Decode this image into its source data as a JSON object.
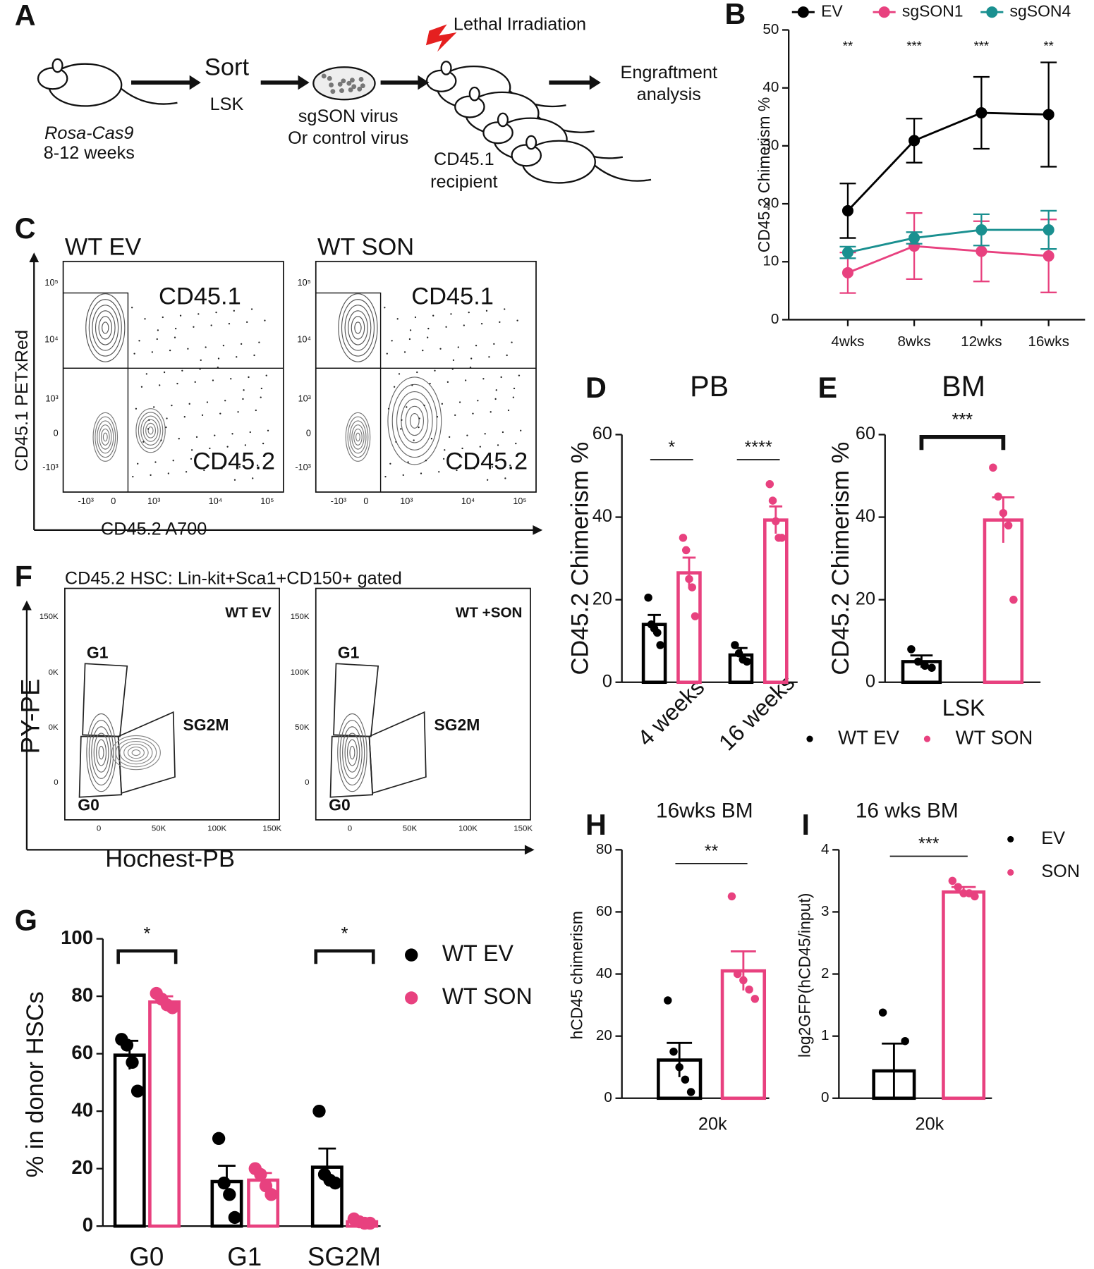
{
  "panel_labels": [
    "A",
    "B",
    "C",
    "D",
    "E",
    "F",
    "G",
    "H",
    "I"
  ],
  "panel_a": {
    "mouse_line": "Rosa-Cas9",
    "age": "8-12 weeks",
    "step1": "Sort",
    "step1_sub": "LSK",
    "virus_line1": "sgSON virus",
    "virus_line2": "Or control virus",
    "irradiation": "Lethal Irradiation",
    "recipient_line1": "CD45.1",
    "recipient_line2": "recipient",
    "analysis_line1": "Engraftment",
    "analysis_line2": "analysis"
  },
  "panel_c": {
    "y_label": "CD45.1 PETxRed",
    "x_label": "CD45.2 A700",
    "y_ticks": [
      "10⁵",
      "10⁴",
      "10³",
      "0",
      "-10³"
    ],
    "x_ticks": [
      "-10³",
      "0",
      "10³",
      "10⁴",
      "10⁵"
    ],
    "plots": [
      {
        "title": "WT EV",
        "upper": "CD45.1",
        "lower": "CD45.2"
      },
      {
        "title": "WT SON",
        "upper": "CD45.1",
        "lower": "CD45.2"
      }
    ]
  },
  "panel_f": {
    "title": "CD45.2 HSC: Lin-kit+Sca1+CD150+ gated",
    "y_label": "PY-PE",
    "x_label": "Hochest-PB",
    "x_ticks": [
      "0",
      "50K",
      "100K",
      "150K"
    ],
    "gates": [
      "G1",
      "SG2M",
      "G0"
    ],
    "plots": [
      {
        "label": "WT EV",
        "y_ticks": [
          "150K",
          "0K",
          "0K",
          "0"
        ]
      },
      {
        "label": "WT +SON",
        "y_ticks": [
          "150K",
          "100K",
          "50K",
          "0"
        ]
      }
    ]
  },
  "chart_data": [
    {
      "type": "line",
      "ylabel": "CD45.2 Chimerism %",
      "categories": [
        "4wks",
        "8wks",
        "12wks",
        "16wks"
      ],
      "ylim": [
        0,
        50
      ],
      "yticks": [
        0,
        10,
        20,
        30,
        40,
        50
      ],
      "significance": [
        "**",
        "***",
        "***",
        "**"
      ],
      "series": [
        {
          "name": "EV",
          "color": "#000000",
          "values": [
            18.8,
            30.9,
            35.7,
            35.4
          ],
          "errors": [
            4.7,
            3.8,
            6.2,
            9.0
          ]
        },
        {
          "name": "sgSON1",
          "color": "#e8417f",
          "values": [
            8.1,
            12.7,
            11.8,
            11.0
          ],
          "errors": [
            3.5,
            5.7,
            5.2,
            6.3
          ]
        },
        {
          "name": "sgSON4",
          "color": "#1a9090",
          "values": [
            11.6,
            14.1,
            15.5,
            15.5
          ],
          "errors": [
            1.0,
            1.0,
            2.7,
            3.3
          ]
        }
      ]
    },
    {
      "type": "bar",
      "title": "PB",
      "ylabel": "CD45.2 Chimerism %",
      "categories": [
        "4 weeks",
        "16 weeks"
      ],
      "ylim": [
        0,
        60
      ],
      "yticks": [
        0,
        20,
        40,
        60
      ],
      "significance": [
        "*",
        "****"
      ],
      "series": [
        {
          "name": "WT EV",
          "color": "#000000",
          "values": [
            14.0,
            6.6
          ],
          "errors": [
            2.3,
            1.7
          ],
          "points": [
            [
              20.5,
              14,
              13,
              12,
              9
            ],
            [
              9,
              7,
              5.5,
              5
            ]
          ]
        },
        {
          "name": "WT SON",
          "color": "#e8417f",
          "values": [
            26.5,
            39.3
          ],
          "errors": [
            3.7,
            3.3
          ],
          "points": [
            [
              35,
              32,
              25,
              23,
              16
            ],
            [
              48,
              44,
              39,
              35,
              35
            ]
          ]
        }
      ]
    },
    {
      "type": "bar",
      "title": "BM",
      "ylabel": "CD45.2 Chimerism %",
      "categories": [
        "LSK"
      ],
      "ylim": [
        0,
        60
      ],
      "yticks": [
        0,
        20,
        40,
        60
      ],
      "significance": [
        "***"
      ],
      "series": [
        {
          "name": "WT EV",
          "color": "#000000",
          "values": [
            5.0
          ],
          "errors": [
            1.5
          ],
          "points": [
            [
              8,
              5,
              4,
              3.5
            ]
          ]
        },
        {
          "name": "WT SON",
          "color": "#e8417f",
          "values": [
            39.3
          ],
          "errors": [
            5.5
          ],
          "points": [
            [
              52,
              45,
              41,
              38,
              20
            ]
          ]
        }
      ]
    },
    {
      "type": "bar",
      "ylabel": "% in donor HSCs",
      "categories": [
        "G0",
        "G1",
        "SG2M"
      ],
      "ylim": [
        0,
        100
      ],
      "yticks": [
        0,
        20,
        40,
        60,
        80,
        100
      ],
      "significance": [
        "*",
        null,
        "*"
      ],
      "series": [
        {
          "name": "WT EV",
          "color": "#000000",
          "values": [
            59.5,
            15.5,
            20.5
          ],
          "errors": [
            5.0,
            5.5,
            6.5
          ],
          "points": [
            [
              65,
              63,
              57,
              47
            ],
            [
              30.5,
              15,
              11,
              3
            ],
            [
              40,
              18,
              16,
              15
            ]
          ]
        },
        {
          "name": "WT SON",
          "color": "#e8417f",
          "values": [
            78.0,
            16.0,
            1.5
          ],
          "errors": [
            2.0,
            2.5,
            0.5
          ],
          "points": [
            [
              81,
              79,
              77,
              76
            ],
            [
              20,
              18,
              14,
              11
            ],
            [
              2.5,
              1.5,
              1,
              1
            ]
          ]
        }
      ]
    },
    {
      "type": "bar",
      "title": "16wks BM",
      "ylabel": "hCD45 chimerism",
      "categories": [
        "20k"
      ],
      "ylim": [
        0,
        80
      ],
      "yticks": [
        0,
        20,
        40,
        60,
        80
      ],
      "significance": [
        "**"
      ],
      "series": [
        {
          "name": "EV",
          "color": "#000000",
          "values": [
            12.3
          ],
          "errors": [
            5.5
          ],
          "points": [
            [
              31.5,
              15,
              10,
              6,
              2
            ]
          ]
        },
        {
          "name": "SON",
          "color": "#e8417f",
          "values": [
            41.0
          ],
          "errors": [
            6.3
          ],
          "points": [
            [
              65,
              40,
              38,
              35,
              32
            ]
          ]
        }
      ]
    },
    {
      "type": "bar",
      "title": "16 wks BM",
      "ylabel": "log2GFP(hCD45/input)",
      "categories": [
        "20k"
      ],
      "ylim": [
        0,
        4
      ],
      "yticks": [
        0,
        1,
        2,
        3,
        4
      ],
      "significance": [
        "***"
      ],
      "series": [
        {
          "name": "EV",
          "color": "#000000",
          "values": [
            0.44
          ],
          "errors": [
            0.44
          ],
          "points": [
            [
              1.38,
              0.92
            ]
          ]
        },
        {
          "name": "SON",
          "color": "#e8417f",
          "values": [
            3.32
          ],
          "errors": [
            0.08
          ],
          "points": [
            [
              3.5,
              3.4,
              3.3,
              3.3,
              3.25
            ]
          ]
        }
      ]
    }
  ]
}
